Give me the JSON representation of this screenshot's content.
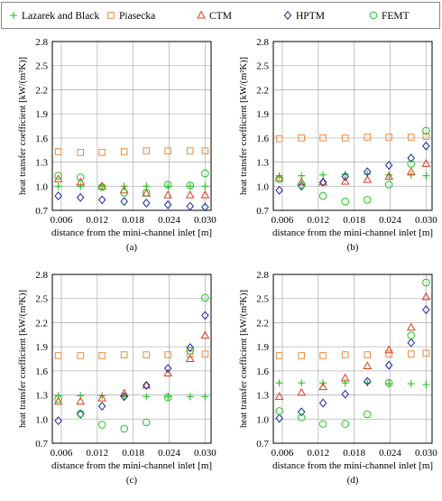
{
  "legend": [
    {
      "name": "Lazarek and Black",
      "marker": "plus",
      "color": "#22c322"
    },
    {
      "name": "Piasecka",
      "marker": "square",
      "color": "#f08a3c"
    },
    {
      "name": "CTM",
      "marker": "triangle",
      "color": "#e03a1e"
    },
    {
      "name": "HPTM",
      "marker": "diamond",
      "color": "#1a2a9c"
    },
    {
      "name": "FEMT",
      "marker": "circle",
      "color": "#22c322"
    }
  ],
  "chart_data": [
    {
      "type": "scatter",
      "caption": "(a)",
      "xlabel": "distance from the mini-channel inlet   [m]",
      "ylabel": "heat transfer coefficient   [kW/(m²K)]",
      "xlim": [
        0.0045,
        0.031
      ],
      "ylim": [
        0.7,
        2.8
      ],
      "xticks": [
        "0.006",
        "0.012",
        "0.018",
        "0.024",
        "0.030"
      ],
      "yticks": [
        "0.7",
        "1.0",
        "1.3",
        "1.6",
        "1.9",
        "2.2",
        "2.5",
        "2.8"
      ],
      "grid": true,
      "x": [
        0.0055,
        0.0092,
        0.0128,
        0.0165,
        0.0202,
        0.0238,
        0.0275,
        0.03
      ],
      "series": [
        {
          "name": "Lazarek and Black",
          "values": [
            1.0,
            1.0,
            1.0,
            1.0,
            1.0,
            1.0,
            1.0,
            1.0
          ]
        },
        {
          "name": "Piasecka",
          "values": [
            1.43,
            1.42,
            1.42,
            1.43,
            1.44,
            1.44,
            1.44,
            1.44
          ]
        },
        {
          "name": "CTM",
          "values": [
            1.09,
            1.05,
            1.0,
            0.95,
            0.91,
            0.89,
            0.89,
            0.89
          ]
        },
        {
          "name": "HPTM",
          "values": [
            0.88,
            0.86,
            0.83,
            0.81,
            0.79,
            0.77,
            0.75,
            0.74
          ]
        },
        {
          "name": "FEMT",
          "values": [
            1.13,
            1.11,
            0.99,
            0.92,
            0.92,
            1.02,
            1.01,
            1.16
          ]
        }
      ]
    },
    {
      "type": "scatter",
      "caption": "(b)",
      "xlabel": "distance from the mini-channel inlet   [m]",
      "ylabel": "heat transfer coefficient   [kW/(m²K)]",
      "xlim": [
        0.0045,
        0.031
      ],
      "ylim": [
        0.7,
        2.8
      ],
      "xticks": [
        "0.006",
        "0.012",
        "0.018",
        "0.024",
        "0.030"
      ],
      "yticks": [
        "0.7",
        "1.0",
        "1.3",
        "1.6",
        "1.9",
        "2.2",
        "2.5",
        "2.8"
      ],
      "grid": true,
      "x": [
        0.0055,
        0.0092,
        0.0128,
        0.0165,
        0.0202,
        0.0238,
        0.0275,
        0.03
      ],
      "series": [
        {
          "name": "Lazarek and Black",
          "values": [
            1.13,
            1.13,
            1.14,
            1.15,
            1.15,
            1.14,
            1.14,
            1.13
          ]
        },
        {
          "name": "Piasecka",
          "values": [
            1.59,
            1.6,
            1.6,
            1.6,
            1.61,
            1.61,
            1.61,
            1.62
          ]
        },
        {
          "name": "CTM",
          "values": [
            1.1,
            1.05,
            1.05,
            1.06,
            1.08,
            1.12,
            1.18,
            1.28
          ]
        },
        {
          "name": "HPTM",
          "values": [
            0.95,
            1.0,
            1.05,
            1.12,
            1.18,
            1.26,
            1.35,
            1.5
          ]
        },
        {
          "name": "FEMT",
          "values": [
            1.09,
            1.02,
            0.88,
            0.81,
            0.83,
            1.02,
            1.28,
            1.69
          ]
        }
      ]
    },
    {
      "type": "scatter",
      "caption": "(c)",
      "xlabel": "distance from the mini-channel inlet   [m]",
      "ylabel": "heat transfer coefficient   [kW/(m²K)]",
      "xlim": [
        0.0045,
        0.031
      ],
      "ylim": [
        0.7,
        2.8
      ],
      "xticks": [
        "0.006",
        "0.012",
        "0.018",
        "0.024",
        "0.030"
      ],
      "yticks": [
        "0.7",
        "1.0",
        "1.3",
        "1.6",
        "1.9",
        "2.2",
        "2.5",
        "2.8"
      ],
      "grid": true,
      "x": [
        0.0055,
        0.0092,
        0.0128,
        0.0165,
        0.0202,
        0.0238,
        0.0275,
        0.03
      ],
      "series": [
        {
          "name": "Lazarek and Black",
          "values": [
            1.29,
            1.29,
            1.29,
            1.28,
            1.28,
            1.28,
            1.28,
            1.28
          ]
        },
        {
          "name": "Piasecka",
          "values": [
            1.79,
            1.79,
            1.79,
            1.8,
            1.8,
            1.8,
            1.81,
            1.81
          ]
        },
        {
          "name": "CTM",
          "values": [
            1.22,
            1.22,
            1.26,
            1.32,
            1.42,
            1.57,
            1.75,
            2.04
          ]
        },
        {
          "name": "HPTM",
          "values": [
            0.98,
            1.06,
            1.16,
            1.28,
            1.42,
            1.63,
            1.89,
            2.29
          ]
        },
        {
          "name": "FEMT",
          "values": [
            1.25,
            1.07,
            0.93,
            0.88,
            0.96,
            1.27,
            1.85,
            2.51
          ]
        }
      ]
    },
    {
      "type": "scatter",
      "caption": "(d)",
      "xlabel": "distance from the mini-channel inlet   [m]",
      "ylabel": "heat transfer coefficient   [kW/(m²K)]",
      "xlim": [
        0.0045,
        0.031
      ],
      "ylim": [
        0.7,
        2.8
      ],
      "xticks": [
        "0.006",
        "0.012",
        "0.018",
        "0.024",
        "0.030"
      ],
      "yticks": [
        "0.7",
        "1.0",
        "1.3",
        "1.6",
        "1.9",
        "2.2",
        "2.5",
        "2.8"
      ],
      "grid": true,
      "x": [
        0.0055,
        0.0092,
        0.0128,
        0.0165,
        0.0202,
        0.0238,
        0.0275,
        0.03
      ],
      "series": [
        {
          "name": "Lazarek and Black",
          "values": [
            1.45,
            1.45,
            1.45,
            1.45,
            1.45,
            1.44,
            1.44,
            1.43
          ]
        },
        {
          "name": "Piasecka",
          "values": [
            1.79,
            1.79,
            1.79,
            1.8,
            1.8,
            1.81,
            1.81,
            1.82
          ]
        },
        {
          "name": "CTM",
          "values": [
            1.28,
            1.33,
            1.4,
            1.51,
            1.66,
            1.86,
            2.14,
            2.52
          ]
        },
        {
          "name": "HPTM",
          "values": [
            1.01,
            1.09,
            1.2,
            1.31,
            1.47,
            1.67,
            1.95,
            2.36
          ]
        },
        {
          "name": "FEMT",
          "values": [
            1.1,
            1.02,
            0.94,
            0.94,
            1.06,
            1.45,
            2.04,
            2.7
          ]
        }
      ]
    }
  ]
}
